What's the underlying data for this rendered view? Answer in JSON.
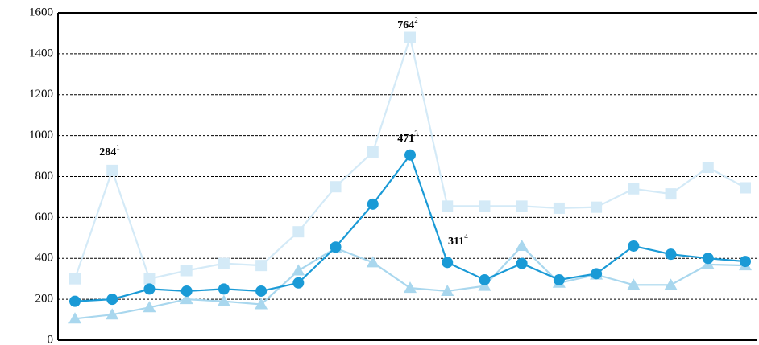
{
  "chart_data": {
    "type": "line",
    "categories": [
      null,
      null,
      null,
      null,
      null,
      null,
      null,
      null,
      null,
      null,
      null,
      null,
      null,
      null,
      null,
      null,
      null,
      null,
      null
    ],
    "series": [
      {
        "color": "#d4eaf7",
        "marker": "square",
        "values": [
          300,
          830,
          300,
          340,
          375,
          365,
          530,
          750,
          920,
          1480,
          655,
          655,
          655,
          645,
          650,
          740,
          715,
          845,
          745
        ]
      },
      {
        "color": "#a9d7ee",
        "marker": "triangle",
        "values": [
          105,
          125,
          160,
          200,
          190,
          175,
          340,
          450,
          380,
          255,
          240,
          265,
          460,
          280,
          320,
          270,
          270,
          370,
          365
        ]
      },
      {
        "color": "#1a9ad6",
        "marker": "circle",
        "values": [
          190,
          200,
          250,
          240,
          250,
          240,
          280,
          455,
          665,
          905,
          380,
          295,
          375,
          295,
          325,
          460,
          420,
          400,
          385
        ]
      }
    ],
    "annotations": [
      {
        "text": "284",
        "note": "1"
      },
      {
        "text": "764",
        "note": "2"
      },
      {
        "text": "471",
        "note": "3"
      },
      {
        "text": "311",
        "note": "4"
      }
    ],
    "ylim": [
      0,
      1600
    ],
    "yticks": [
      0,
      200,
      400,
      600,
      800,
      1000,
      1200,
      1400,
      1600
    ],
    "grid": true
  }
}
